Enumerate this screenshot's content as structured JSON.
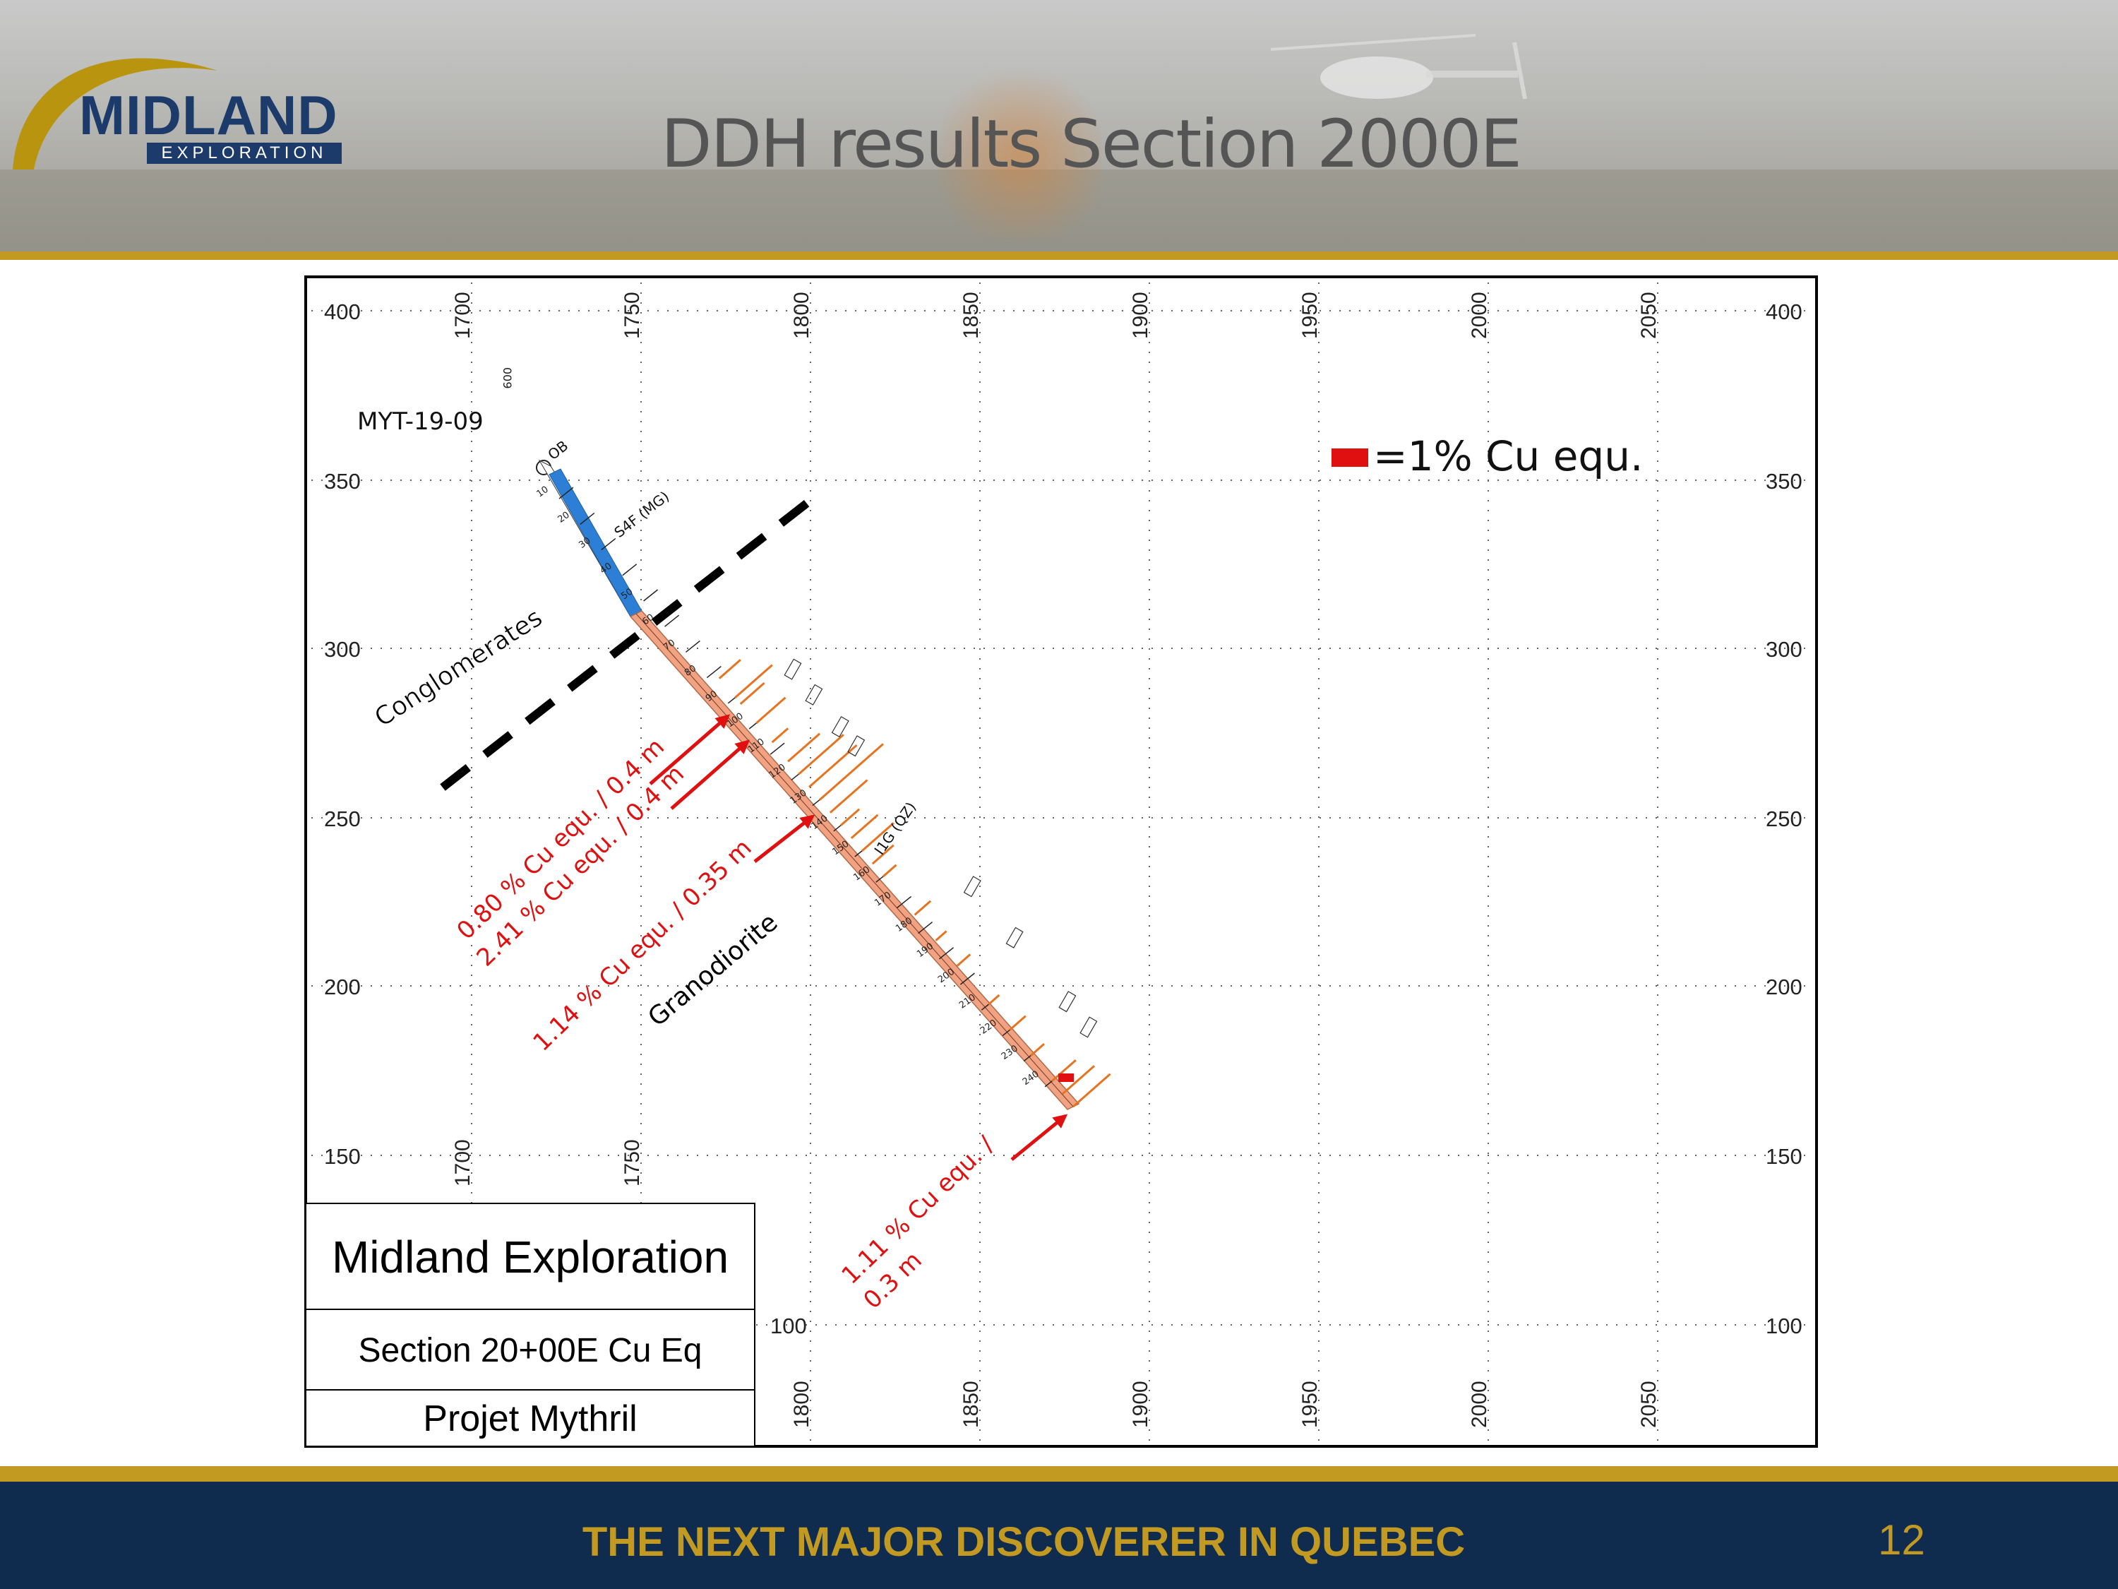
{
  "header": {
    "logo_brand": "MIDLAND",
    "logo_sub": "EXPLORATION",
    "title": "DDH results Section 2000E"
  },
  "section": {
    "x_ticks_top": [
      "1700",
      "1750",
      "1800",
      "1850",
      "1900",
      "1950",
      "2000",
      "2050"
    ],
    "x_ticks_mid": [
      "1700",
      "1750"
    ],
    "x_ticks_bottom": [
      "1800",
      "1850",
      "1900",
      "1950",
      "2000",
      "2050"
    ],
    "y_ticks": [
      "400",
      "350",
      "300",
      "250",
      "200",
      "150",
      "100"
    ],
    "hole_id": "MYT-19-09",
    "collar_label": "009",
    "legend": "=1% Cu equ.",
    "unit_labels": [
      "OB",
      "S4F (MG)",
      "I1G (QZ)"
    ],
    "depth_marks": [
      "10",
      "20",
      "30",
      "40",
      "50",
      "60",
      "70",
      "80",
      "90",
      "100",
      "110",
      "120",
      "130",
      "140",
      "150",
      "160",
      "170",
      "180",
      "190",
      "200",
      "210",
      "220",
      "230",
      "240"
    ],
    "rock_labels": [
      "Conglomerates",
      "Granodiorite"
    ],
    "intercepts": [
      "0.80 % Cu equ. / 0.4 m",
      "2.41 % Cu equ. / 0.4 m",
      "1.14 % Cu equ. / 0.35 m",
      "1.11 % Cu equ. /",
      "0.3 m"
    ],
    "title_block": {
      "company": "Midland Exploration",
      "section": "Section 20+00E Cu Eq",
      "project": "Projet Mythril"
    }
  },
  "footer": {
    "tagline": "THE NEXT MAJOR DISCOVERER IN QUEBEC",
    "page_number": "12"
  },
  "colors": {
    "gold": "#c29a22",
    "navy": "#0f2c4f",
    "logo_blue": "#1c3b6b",
    "overburden": "#2d7fd6",
    "granodiorite": "#f0a282",
    "cu_bar": "#e8731f",
    "annotation_red": "#e01010"
  }
}
